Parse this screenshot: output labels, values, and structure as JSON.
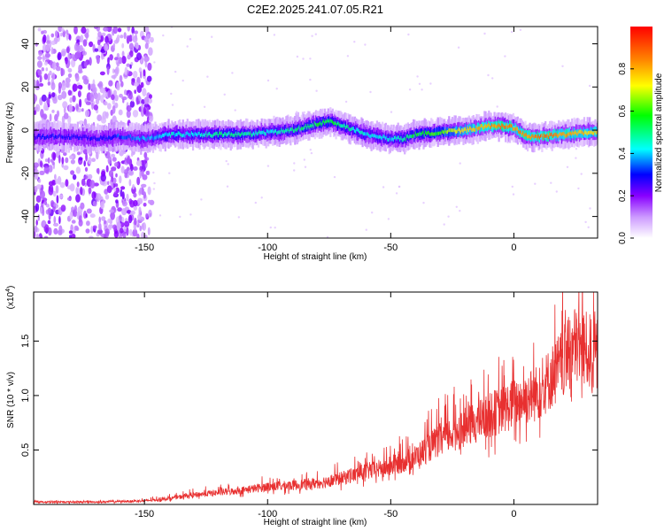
{
  "figure_title": "C2E2.2025.241.07.05.R21",
  "chart_data": [
    {
      "type": "heatmap",
      "xlabel": "Height of straight line (km)",
      "ylabel": "Frequency (Hz)",
      "xlim": [
        -195,
        34
      ],
      "ylim": [
        -50,
        48
      ],
      "xticks": [
        "-150",
        "-100",
        "-50",
        "0"
      ],
      "yticks": [
        "-40",
        "-20",
        "0",
        "20",
        "40"
      ],
      "colorbar": {
        "label": "Normalized spectral amplitude",
        "range": [
          0,
          1
        ],
        "ticks": [
          "0.0",
          "0.2",
          "0.4",
          "0.6",
          "0.8"
        ],
        "colors": [
          "#ffffff",
          "#cc99ff",
          "#8800ff",
          "#0000ff",
          "#00ffff",
          "#00ff00",
          "#ffff00",
          "#ff8800",
          "#ff0000"
        ]
      },
      "ridge": {
        "x": [
          -180,
          -170,
          -160,
          -150,
          -140,
          -130,
          -120,
          -110,
          -100,
          -90,
          -80,
          -75,
          -70,
          -60,
          -50,
          -45,
          -40,
          -30,
          -20,
          -10,
          -5,
          0,
          5,
          10,
          20,
          30,
          34
        ],
        "frequency": [
          -3,
          -4,
          -3,
          -4,
          -2,
          -2,
          -2,
          -2,
          -1,
          0,
          3,
          4,
          2,
          -2,
          -4,
          -4,
          -2,
          -1,
          0,
          2,
          2,
          1,
          -3,
          -3,
          -2,
          -1,
          -1
        ],
        "amplitude": [
          0.35,
          0.35,
          0.4,
          0.45,
          0.5,
          0.5,
          0.55,
          0.55,
          0.5,
          0.55,
          0.6,
          0.6,
          0.55,
          0.5,
          0.5,
          0.55,
          0.6,
          0.65,
          0.8,
          0.85,
          0.9,
          0.85,
          0.85,
          0.9,
          0.85,
          0.8,
          0.8
        ]
      },
      "noise_region": {
        "x": [
          -195,
          -147
        ],
        "frequency": [
          -50,
          48
        ],
        "amplitude": 0.25
      }
    },
    {
      "type": "line",
      "xlabel": "Height of straight line (km)",
      "ylabel": "SNR (10 * v/v)",
      "scale_label": "(x10",
      "scale_exponent": "4",
      "xlim": [
        -195,
        34
      ],
      "ylim": [
        0,
        1.95
      ],
      "xticks": [
        "-150",
        "-100",
        "-50",
        "0"
      ],
      "yticks": [
        "0.5",
        "1.0",
        "1.5"
      ],
      "color": "#e83030",
      "x": [
        -195,
        -180,
        -170,
        -160,
        -150,
        -140,
        -130,
        -120,
        -110,
        -100,
        -90,
        -80,
        -70,
        -60,
        -50,
        -40,
        -30,
        -20,
        -10,
        0,
        10,
        20,
        25,
        30,
        34
      ],
      "y": [
        0.02,
        0.02,
        0.02,
        0.025,
        0.03,
        0.05,
        0.08,
        0.1,
        0.12,
        0.15,
        0.16,
        0.18,
        0.22,
        0.28,
        0.32,
        0.4,
        0.55,
        0.65,
        0.75,
        0.85,
        0.95,
        1.2,
        1.35,
        1.3,
        1.25
      ]
    }
  ]
}
